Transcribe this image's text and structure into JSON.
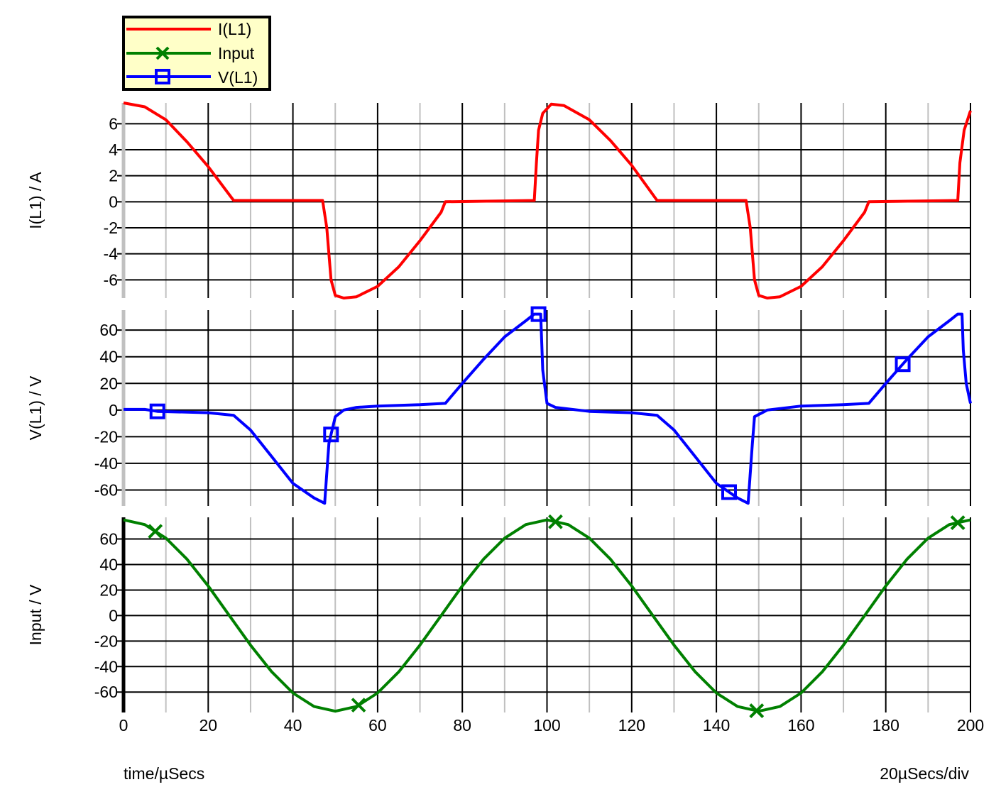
{
  "chart_data": [
    {
      "type": "line",
      "ylabel": "I(L1) / A",
      "ylim": [
        -7.4,
        7.6
      ],
      "yticks": [
        6,
        4,
        2,
        0,
        -2,
        -4,
        -6
      ],
      "grid": true,
      "series": [
        {
          "name": "I(L1)",
          "color": "#ff0000",
          "marker": "none",
          "x": [
            0,
            5,
            10,
            15,
            20,
            26,
            47,
            48,
            49,
            50,
            52,
            55,
            60,
            65,
            70,
            75,
            76,
            97,
            97.5,
            98,
            99,
            101,
            104,
            110,
            115,
            120,
            126,
            147,
            148,
            149,
            150,
            152,
            155,
            160,
            165,
            170,
            175,
            176,
            197,
            197.5,
            198.5,
            200
          ],
          "y": [
            7.6,
            7.3,
            6.3,
            4.6,
            2.7,
            0.1,
            0.1,
            -2,
            -6,
            -7.2,
            -7.4,
            -7.3,
            -6.5,
            -5,
            -3,
            -0.8,
            0,
            0.1,
            3,
            5.5,
            6.8,
            7.5,
            7.4,
            6.3,
            4.7,
            2.8,
            0.1,
            0.1,
            -2,
            -6,
            -7.2,
            -7.4,
            -7.3,
            -6.5,
            -5,
            -3,
            -0.8,
            0,
            0.1,
            3,
            5.5,
            7
          ]
        }
      ]
    },
    {
      "type": "line",
      "ylabel": "V(L1) / V",
      "ylim": [
        -72,
        75
      ],
      "yticks": [
        60,
        40,
        20,
        0,
        -20,
        -40,
        -60
      ],
      "grid": true,
      "series": [
        {
          "name": "V(L1)",
          "color": "#0000ff",
          "marker": "square",
          "x": [
            0,
            5,
            8,
            20,
            26,
            30,
            35,
            40,
            45,
            47.5,
            48.5,
            50,
            52,
            55,
            60,
            65,
            70,
            76,
            80,
            85,
            90,
            95,
            97,
            98.5,
            99,
            100,
            102,
            110,
            120,
            126,
            130,
            135,
            140,
            145,
            147.5,
            148.5,
            149,
            152,
            160,
            170,
            176,
            180,
            185,
            190,
            195,
            197,
            198,
            198.3,
            199,
            200
          ],
          "y": [
            0.5,
            0.5,
            -1,
            -2,
            -4,
            -15,
            -35,
            -55,
            -66,
            -70,
            -25,
            -5,
            0,
            2,
            3,
            3.5,
            4,
            5,
            20,
            38,
            55,
            67,
            72,
            72,
            30,
            5,
            2,
            -1,
            -2,
            -4,
            -15,
            -35,
            -55,
            -66,
            -70,
            -25,
            -5,
            0,
            3,
            4,
            5,
            20,
            38,
            55,
            67,
            72,
            72,
            45,
            20,
            5
          ],
          "marker_x": [
            8,
            49,
            98,
            143,
            184
          ]
        }
      ]
    },
    {
      "type": "line",
      "ylabel": "Input / V",
      "ylim": [
        -76,
        77
      ],
      "yticks": [
        60,
        40,
        20,
        0,
        -20,
        -40,
        -60
      ],
      "xlabel": "time/µSecs",
      "xlim": [
        0,
        200
      ],
      "xticks": [
        0,
        20,
        40,
        60,
        80,
        100,
        120,
        140,
        160,
        180,
        200
      ],
      "grid": true,
      "series": [
        {
          "name": "Input",
          "color": "#008000",
          "marker": "x",
          "x": [
            0,
            5,
            10,
            15,
            20,
            25,
            30,
            35,
            40,
            45,
            50,
            55,
            60,
            65,
            70,
            75,
            80,
            85,
            90,
            95,
            100,
            105,
            110,
            115,
            120,
            125,
            130,
            135,
            140,
            145,
            150,
            155,
            160,
            165,
            170,
            175,
            180,
            185,
            190,
            195,
            200
          ],
          "y": [
            75,
            71.3,
            60.7,
            44.1,
            23.2,
            0,
            -23.2,
            -44.1,
            -60.7,
            -71.3,
            -75,
            -71.3,
            -60.7,
            -44.1,
            -23.2,
            0,
            23.2,
            44.1,
            60.7,
            71.3,
            75,
            71.3,
            60.7,
            44.1,
            23.2,
            0,
            -23.2,
            -44.1,
            -60.7,
            -71.3,
            -75,
            -71.3,
            -60.7,
            -44.1,
            -23.2,
            0,
            23.2,
            44.1,
            60.7,
            71.3,
            75
          ],
          "marker_x": [
            7.5,
            55.5,
            102,
            149.5,
            197
          ]
        }
      ]
    }
  ],
  "legend": {
    "placement": "top-left",
    "background": "#ffffc8",
    "entries": [
      {
        "label": "I(L1)",
        "color": "#ff0000",
        "marker": "none"
      },
      {
        "label": "Input",
        "color": "#008000",
        "marker": "x"
      },
      {
        "label": "V(L1)",
        "color": "#0000ff",
        "marker": "square"
      }
    ]
  },
  "footer": {
    "xlabel": "time/µSecs",
    "scale": "20µSecs/div"
  }
}
